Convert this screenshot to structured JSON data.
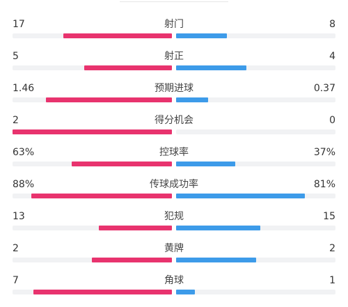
{
  "colors": {
    "home": "#e8336e",
    "away": "#3d9be9",
    "track": "#f1f2f4"
  },
  "stats": [
    {
      "label": "射门",
      "home": "17",
      "away": "8",
      "home_fill": 0.68,
      "away_fill": 0.32
    },
    {
      "label": "射正",
      "home": "5",
      "away": "4",
      "home_fill": 0.55,
      "away_fill": 0.44
    },
    {
      "label": "预期进球",
      "home": "1.46",
      "away": "0.37",
      "home_fill": 0.79,
      "away_fill": 0.2
    },
    {
      "label": "得分机会",
      "home": "2",
      "away": "0",
      "home_fill": 1.0,
      "away_fill": 0.0
    },
    {
      "label": "控球率",
      "home": "63%",
      "away": "37%",
      "home_fill": 0.63,
      "away_fill": 0.37
    },
    {
      "label": "传球成功率",
      "home": "88%",
      "away": "81%",
      "home_fill": 0.88,
      "away_fill": 0.81
    },
    {
      "label": "犯规",
      "home": "13",
      "away": "15",
      "home_fill": 0.46,
      "away_fill": 0.53
    },
    {
      "label": "黄牌",
      "home": "2",
      "away": "2",
      "home_fill": 0.5,
      "away_fill": 0.5
    },
    {
      "label": "角球",
      "home": "7",
      "away": "1",
      "home_fill": 0.87,
      "away_fill": 0.12
    }
  ]
}
